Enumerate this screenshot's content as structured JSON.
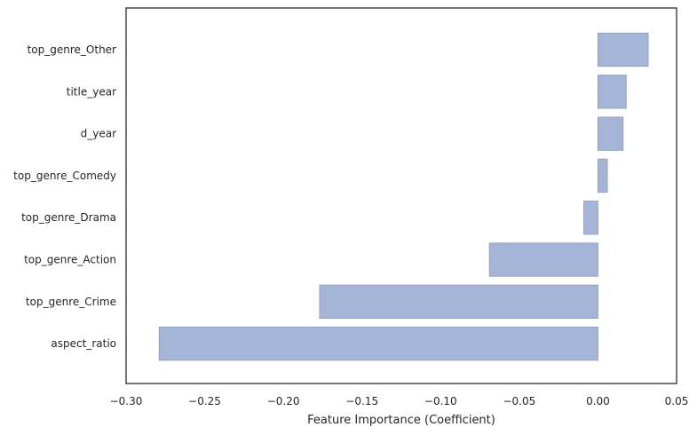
{
  "chart_data": {
    "type": "bar",
    "orientation": "horizontal",
    "categories": [
      "top_genre_Other",
      "title_year",
      "d_year",
      "top_genre_Comedy",
      "top_genre_Drama",
      "top_genre_Action",
      "top_genre_Crime",
      "aspect_ratio"
    ],
    "values": [
      0.032,
      0.018,
      0.016,
      0.006,
      -0.009,
      -0.069,
      -0.177,
      -0.279
    ],
    "title": "",
    "xlabel": "Feature Importance (Coefficient)",
    "ylabel": "",
    "xlim": [
      -0.3,
      0.05
    ],
    "xticks": [
      -0.3,
      -0.25,
      -0.2,
      -0.15,
      -0.1,
      -0.05,
      0.0,
      0.05
    ],
    "xtick_labels": [
      "−0.30",
      "−0.25",
      "−0.20",
      "−0.15",
      "−0.10",
      "−0.05",
      "0.00",
      "0.05"
    ],
    "grid": false,
    "legend": "none",
    "colors": {
      "bar_fill": "#a4b5d8",
      "bar_edge": "#8f9bb3",
      "axes": "#262626"
    }
  }
}
